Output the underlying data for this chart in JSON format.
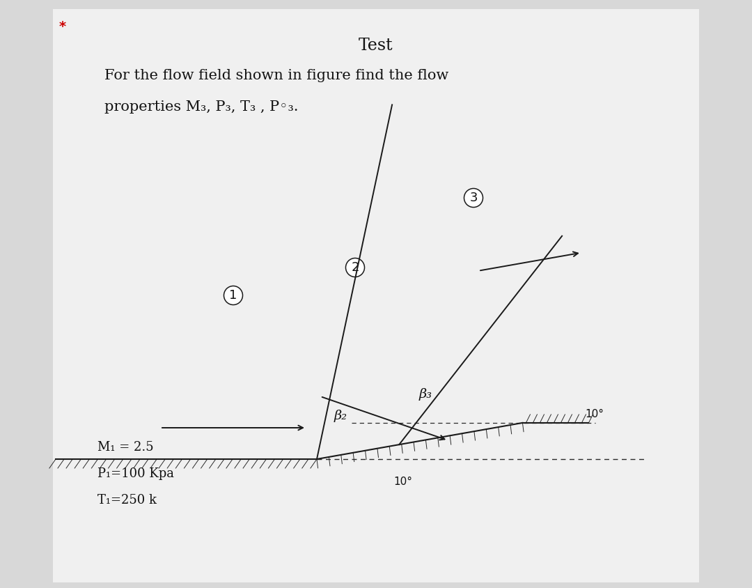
{
  "title": "Test",
  "question_line1": "For the flow field shown in figure find the flow",
  "question_line2": "properties M₃, P₃, T₃ , P◦₃.",
  "M1_label": "M₁ = 2.5",
  "P1_label": "P₁=100 Kpa",
  "T1_label": "T₁=250 k",
  "angle_bottom": "10°",
  "angle_top": "10°",
  "beta2_label": "β₂",
  "beta3_label": "β₃",
  "region1_label": "1",
  "region2_label": "2",
  "region3_label": "3",
  "star_label": "*",
  "bg_color": "#d8d8d8",
  "page_color": "#f0f0f0",
  "line_color": "#1a1a1a",
  "text_color": "#111111",
  "hatch_color": "#2a2a2a",
  "dashed_color": "#2a2a2a",
  "red_star_color": "#cc0000"
}
